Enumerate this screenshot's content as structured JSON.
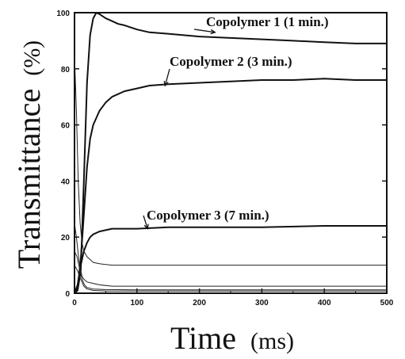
{
  "chart_data": {
    "type": "line",
    "title": "",
    "xlabel": "Time",
    "xlabel_unit": "(ms)",
    "ylabel": "Transmittance",
    "ylabel_unit": "(%)",
    "xlim": [
      0,
      500
    ],
    "ylim": [
      0,
      100
    ],
    "x_ticks": [
      0,
      100,
      200,
      300,
      400,
      500
    ],
    "y_ticks": [
      0,
      20,
      40,
      60,
      80,
      100
    ],
    "grid": false,
    "legend": "none",
    "annotations": [
      {
        "text": "Copolymer 1 (1 min.)",
        "target_x": 225,
        "target_y": 93
      },
      {
        "text": "Copolymer 2 (3 min.)",
        "target_x": 145,
        "target_y": 74
      },
      {
        "text": "Copolymer 3 (7 min.)",
        "target_x": 117,
        "target_y": 23
      }
    ],
    "series": [
      {
        "name": "Copolymer 1 (1 min.)",
        "x": [
          0,
          5,
          10,
          15,
          20,
          25,
          30,
          35,
          40,
          50,
          60,
          70,
          80,
          100,
          120,
          150,
          200,
          250,
          300,
          350,
          400,
          450,
          500
        ],
        "y": [
          0,
          1,
          8,
          40,
          75,
          92,
          98,
          100,
          99.5,
          98,
          97,
          96,
          95.5,
          94,
          93,
          92.5,
          91.5,
          91,
          90.5,
          90,
          89.5,
          89,
          89
        ]
      },
      {
        "name": "Copolymer 2 (3 min.)",
        "x": [
          0,
          5,
          10,
          15,
          20,
          25,
          30,
          40,
          50,
          60,
          80,
          100,
          120,
          150,
          200,
          250,
          300,
          350,
          400,
          450,
          500
        ],
        "y": [
          0,
          2,
          12,
          28,
          45,
          55,
          60,
          65,
          68,
          70,
          72,
          73,
          74,
          74.5,
          75,
          75.5,
          76,
          76,
          76.5,
          76,
          76
        ]
      },
      {
        "name": "Copolymer 3 (7 min.)",
        "x": [
          0,
          5,
          10,
          15,
          20,
          25,
          30,
          40,
          50,
          60,
          80,
          100,
          150,
          200,
          300,
          400,
          500
        ],
        "y": [
          0,
          3,
          10,
          15,
          18,
          20,
          21,
          22,
          22.5,
          23,
          23,
          23,
          23.5,
          23.5,
          23.5,
          24,
          24
        ]
      },
      {
        "x": [
          0,
          3,
          6,
          9,
          12,
          15,
          20,
          25,
          30,
          40,
          60,
          100,
          200,
          300,
          400,
          500
        ],
        "y": [
          85,
          65,
          40,
          25,
          18,
          15,
          13,
          12,
          11,
          10.5,
          10,
          10,
          10,
          10,
          10,
          10
        ]
      },
      {
        "x": [
          0,
          3,
          6,
          9,
          12,
          15,
          20,
          30,
          40,
          60,
          100,
          200,
          300,
          400,
          500
        ],
        "y": [
          25,
          20,
          14,
          9,
          6,
          5,
          4,
          3.5,
          3,
          2.5,
          2.5,
          2.5,
          2.5,
          2.5,
          2.5
        ]
      },
      {
        "x": [
          0,
          4,
          8,
          12,
          16,
          20,
          30,
          50,
          100,
          200,
          300,
          400,
          500
        ],
        "y": [
          15,
          13,
          9,
          5,
          3,
          2,
          1.5,
          1.3,
          1.2,
          1.2,
          1.2,
          1.2,
          1.2
        ]
      },
      {
        "x": [
          0,
          5,
          10,
          15,
          20,
          30,
          50,
          100,
          200,
          300,
          400,
          500
        ],
        "y": [
          10,
          8,
          5,
          2.5,
          1.5,
          1,
          0.8,
          0.8,
          0.8,
          0.8,
          0.8,
          0.8
        ]
      }
    ]
  }
}
